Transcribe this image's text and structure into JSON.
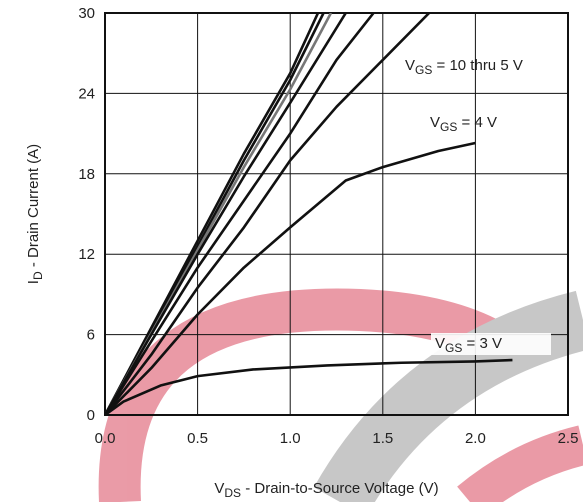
{
  "chart_data": {
    "type": "line",
    "x_label": {
      "main": "V",
      "sub": "DS",
      "rest": " - Drain-to-Source Voltage (V)"
    },
    "y_label": {
      "main": "I",
      "sub": "D",
      "rest": " - Drain Current (A)"
    },
    "annotations": [
      {
        "main": "V",
        "sub": "GS",
        "rest": " = 10 thru 5 V"
      },
      {
        "main": "V",
        "sub": "GS",
        "rest": " = 4 V"
      },
      {
        "main": "V",
        "sub": "GS",
        "rest": " = 3 V"
      }
    ],
    "xlim": [
      0,
      2.5
    ],
    "ylim": [
      0,
      30
    ],
    "xticks": [
      {
        "value": 0,
        "label": "0.0"
      },
      0.5,
      {
        "value": 1,
        "label": "1.0"
      },
      1.5,
      {
        "value": 2,
        "label": "2.0"
      },
      2.5
    ],
    "yticks": [
      0,
      6,
      12,
      18,
      24,
      30
    ],
    "grid": true,
    "series": [
      {
        "color": "#111111",
        "x": [
          0,
          0.25,
          0.5,
          0.75,
          1.0,
          1.15
        ],
        "values": [
          0,
          6.5,
          13,
          19.5,
          25.5,
          30
        ]
      },
      {
        "color": "#111111",
        "x": [
          0,
          0.25,
          0.5,
          0.75,
          1.0,
          1.18
        ],
        "values": [
          0,
          6.3,
          12.6,
          19,
          25,
          30
        ]
      },
      {
        "color": "#777777",
        "x": [
          0,
          0.25,
          0.5,
          0.75,
          1.0,
          1.22
        ],
        "values": [
          0,
          6.1,
          12.3,
          18.5,
          24.3,
          30
        ]
      },
      {
        "color": "#111111",
        "x": [
          0,
          0.25,
          0.5,
          0.75,
          1.0,
          1.3
        ],
        "values": [
          0,
          6,
          12,
          17.8,
          23.3,
          30
        ]
      },
      {
        "color": "#111111",
        "x": [
          0,
          0.25,
          0.5,
          0.75,
          1.0,
          1.25,
          1.45
        ],
        "values": [
          0,
          5.5,
          11,
          16,
          21,
          26.5,
          30
        ]
      },
      {
        "color": "#111111",
        "x": [
          0,
          0.25,
          0.5,
          0.75,
          1.0,
          1.25,
          1.5,
          1.75
        ],
        "values": [
          0,
          4.5,
          9.5,
          14,
          19,
          23,
          26.5,
          30
        ]
      },
      {
        "color": "#111111",
        "x": [
          0,
          0.25,
          0.5,
          0.75,
          1.0,
          1.3,
          1.5,
          1.8,
          2.0
        ],
        "values": [
          0,
          3.5,
          7.5,
          11,
          14,
          17.5,
          18.5,
          19.7,
          20.3
        ]
      },
      {
        "color": "#111111",
        "x": [
          0,
          0.1,
          0.3,
          0.5,
          0.8,
          1.2,
          1.6,
          2.0,
          2.2
        ],
        "values": [
          0,
          1.0,
          2.2,
          2.9,
          3.4,
          3.7,
          3.9,
          4.0,
          4.1
        ]
      }
    ]
  }
}
